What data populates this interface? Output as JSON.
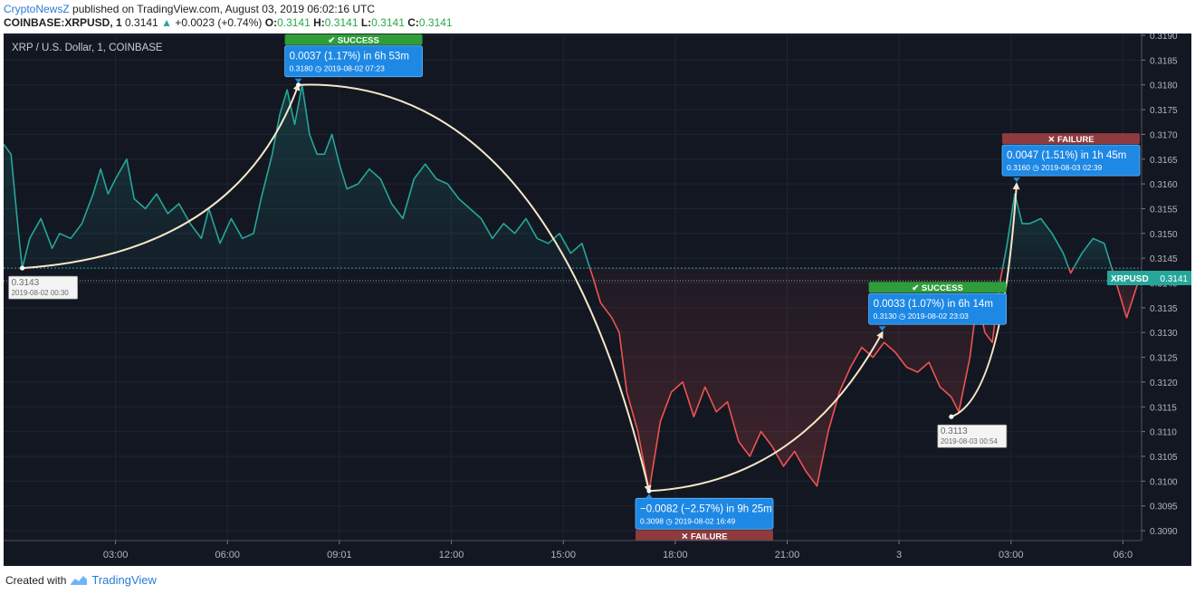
{
  "header": {
    "author": "CryptoNewsZ",
    "published_text": "published on TradingView.com, August 03, 2019 06:02:16 UTC",
    "symbol": "COINBASE:XRPUSD, 1",
    "last": "0.3141",
    "change": "+0.0023 (+0.74%)",
    "o_label": "O:",
    "o": "0.3141",
    "h_label": "H:",
    "h": "0.3141",
    "l_label": "L:",
    "l": "0.3141",
    "c_label": "C:",
    "c": "0.3141"
  },
  "footer": {
    "created_with": "Created with",
    "brand": "TradingView"
  },
  "colors": {
    "background": "#131722",
    "up": "#26a69a",
    "down": "#ef5350",
    "arrow": "#f5e7c8",
    "label_blue": "#1e88e5",
    "success": "#2e9d3a",
    "failure": "#8e3a3e"
  },
  "chart_data": {
    "type": "line",
    "title": "XRP / U.S. Dollar, 1, COINBASE",
    "ylim": [
      0.3088,
      0.319
    ],
    "y_ticks": [
      "0.3190",
      "0.3185",
      "0.3180",
      "0.3175",
      "0.3170",
      "0.3165",
      "0.3160",
      "0.3155",
      "0.3150",
      "0.3145",
      "0.3140",
      "0.3135",
      "0.3130",
      "0.3125",
      "0.3120",
      "0.3115",
      "0.3110",
      "0.3105",
      "0.3100",
      "0.3095",
      "0.3090"
    ],
    "y_tick_values": [
      0.319,
      0.3185,
      0.318,
      0.3175,
      0.317,
      0.3165,
      0.316,
      0.3155,
      0.315,
      0.3145,
      0.314,
      0.3135,
      0.313,
      0.3125,
      0.312,
      0.3115,
      0.311,
      0.3105,
      0.31,
      0.3095,
      0.309
    ],
    "x_ticks": [
      {
        "label": "03:00",
        "h": 2.5
      },
      {
        "label": "06:00",
        "h": 5.5
      },
      {
        "label": "09:01",
        "h": 8.5
      },
      {
        "label": "12:00",
        "h": 11.5
      },
      {
        "label": "15:00",
        "h": 14.5
      },
      {
        "label": "18:00",
        "h": 17.5
      },
      {
        "label": "21:00",
        "h": 20.5
      },
      {
        "label": "3",
        "h": 23.5
      },
      {
        "label": "03:00",
        "h": 26.5
      },
      {
        "label": "06:0",
        "h": 29.5
      }
    ],
    "x_range_hours": [
      -0.5,
      30.0
    ],
    "reference_level": 0.3143,
    "series": [
      {
        "points": [
          [
            -0.5,
            0.3168
          ],
          [
            -0.3,
            0.3166
          ],
          [
            -0.1,
            0.315
          ],
          [
            0.0,
            0.3143
          ],
          [
            0.2,
            0.3149
          ],
          [
            0.5,
            0.3153
          ],
          [
            0.8,
            0.3147
          ],
          [
            1.0,
            0.315
          ],
          [
            1.3,
            0.3149
          ],
          [
            1.6,
            0.3152
          ],
          [
            1.9,
            0.3158
          ],
          [
            2.1,
            0.3163
          ],
          [
            2.3,
            0.3158
          ],
          [
            2.5,
            0.3161
          ],
          [
            2.8,
            0.3165
          ],
          [
            3.0,
            0.3157
          ],
          [
            3.3,
            0.3155
          ],
          [
            3.6,
            0.3158
          ],
          [
            3.9,
            0.3154
          ],
          [
            4.2,
            0.3156
          ],
          [
            4.5,
            0.3152
          ],
          [
            4.8,
            0.3149
          ],
          [
            5.0,
            0.3155
          ],
          [
            5.3,
            0.3148
          ],
          [
            5.6,
            0.3153
          ],
          [
            5.9,
            0.3149
          ],
          [
            6.2,
            0.315
          ],
          [
            6.4,
            0.3157
          ],
          [
            6.7,
            0.3166
          ],
          [
            6.9,
            0.3174
          ],
          [
            7.1,
            0.3179
          ],
          [
            7.3,
            0.3172
          ],
          [
            7.5,
            0.318
          ],
          [
            7.7,
            0.317
          ],
          [
            7.9,
            0.3166
          ],
          [
            8.1,
            0.3166
          ],
          [
            8.3,
            0.317
          ],
          [
            8.5,
            0.3164
          ],
          [
            8.7,
            0.3159
          ],
          [
            9.0,
            0.316
          ],
          [
            9.3,
            0.3163
          ],
          [
            9.6,
            0.3161
          ],
          [
            9.9,
            0.3156
          ],
          [
            10.2,
            0.3153
          ],
          [
            10.5,
            0.3161
          ],
          [
            10.8,
            0.3164
          ],
          [
            11.1,
            0.3161
          ],
          [
            11.4,
            0.316
          ],
          [
            11.7,
            0.3157
          ],
          [
            12.0,
            0.3155
          ],
          [
            12.3,
            0.3153
          ],
          [
            12.6,
            0.3149
          ],
          [
            12.9,
            0.3152
          ],
          [
            13.2,
            0.315
          ],
          [
            13.5,
            0.3153
          ],
          [
            13.8,
            0.3149
          ],
          [
            14.1,
            0.3148
          ],
          [
            14.4,
            0.315
          ],
          [
            14.7,
            0.3146
          ],
          [
            15.0,
            0.3148
          ],
          [
            15.3,
            0.3141
          ],
          [
            15.5,
            0.3136
          ],
          [
            15.8,
            0.3133
          ],
          [
            16.0,
            0.313
          ],
          [
            16.2,
            0.3118
          ],
          [
            16.5,
            0.311
          ],
          [
            16.8,
            0.3098
          ],
          [
            17.1,
            0.3112
          ],
          [
            17.4,
            0.3118
          ],
          [
            17.7,
            0.312
          ],
          [
            18.0,
            0.3113
          ],
          [
            18.3,
            0.3119
          ],
          [
            18.6,
            0.3114
          ],
          [
            18.9,
            0.3116
          ],
          [
            19.2,
            0.3108
          ],
          [
            19.5,
            0.3105
          ],
          [
            19.8,
            0.311
          ],
          [
            20.1,
            0.3107
          ],
          [
            20.4,
            0.3103
          ],
          [
            20.7,
            0.3106
          ],
          [
            21.0,
            0.3102
          ],
          [
            21.3,
            0.3099
          ],
          [
            21.6,
            0.311
          ],
          [
            21.9,
            0.3118
          ],
          [
            22.2,
            0.3123
          ],
          [
            22.5,
            0.3127
          ],
          [
            22.8,
            0.3125
          ],
          [
            23.1,
            0.3128
          ],
          [
            23.4,
            0.3126
          ],
          [
            23.7,
            0.3123
          ],
          [
            24.0,
            0.3122
          ],
          [
            24.3,
            0.3124
          ],
          [
            24.6,
            0.3119
          ],
          [
            24.9,
            0.3117
          ],
          [
            25.1,
            0.3114
          ],
          [
            25.4,
            0.3125
          ],
          [
            25.6,
            0.3137
          ],
          [
            25.8,
            0.313
          ],
          [
            26.0,
            0.3128
          ],
          [
            26.2,
            0.314
          ],
          [
            26.4,
            0.3148
          ],
          [
            26.6,
            0.3158
          ],
          [
            26.8,
            0.3152
          ],
          [
            27.0,
            0.3152
          ],
          [
            27.3,
            0.3153
          ],
          [
            27.6,
            0.315
          ],
          [
            27.9,
            0.3146
          ],
          [
            28.1,
            0.3142
          ],
          [
            28.4,
            0.3146
          ],
          [
            28.7,
            0.3149
          ],
          [
            29.0,
            0.3148
          ],
          [
            29.2,
            0.3143
          ],
          [
            29.4,
            0.3138
          ],
          [
            29.6,
            0.3133
          ],
          [
            29.9,
            0.314
          ]
        ]
      }
    ],
    "current_price_label": "XRPUSD",
    "current_price": "0.3141",
    "current_price_value": 0.3141,
    "point_markers": [
      {
        "price": "0.3143",
        "time": "2019-08-02 00:30",
        "h": 0.0,
        "value": 0.3143,
        "pos": "below"
      },
      {
        "price": "0.3113",
        "time": "2019-08-03 00:54",
        "h": 24.9,
        "value": 0.3113,
        "pos": "below"
      }
    ],
    "annotations": [
      {
        "from": [
          0.0,
          0.3143
        ],
        "to": [
          7.4,
          0.318
        ],
        "status": "SUCCESS",
        "status_icon": "✔",
        "line1": "0.0037 (1.17%) in 6h 53m",
        "price": "0.3180",
        "time": "2019-08-02  07:23",
        "box_side": "above"
      },
      {
        "from": [
          7.4,
          0.318
        ],
        "to": [
          16.8,
          0.3098
        ],
        "status": "FAILURE",
        "status_icon": "✕",
        "line1": "−0.0082 (−2.57%) in 9h 25m",
        "price": "0.3098",
        "time": "2019-08-02  16:49",
        "box_side": "below"
      },
      {
        "from": [
          16.8,
          0.3098
        ],
        "to": [
          23.05,
          0.313
        ],
        "status": "SUCCESS",
        "status_icon": "✔",
        "line1": "0.0033 (1.07%) in 6h 14m",
        "price": "0.3130",
        "time": "2019-08-02  23:03",
        "box_side": "above"
      },
      {
        "from": [
          24.9,
          0.3113
        ],
        "to": [
          26.65,
          0.316
        ],
        "status": "FAILURE",
        "status_icon": "✕",
        "line1": "0.0047 (1.51%) in 1h 45m",
        "price": "0.3160",
        "time": "2019-08-03  02:39",
        "box_side": "above"
      }
    ]
  }
}
